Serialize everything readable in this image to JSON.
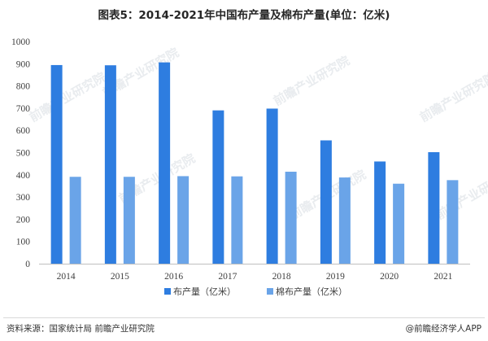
{
  "title": "图表5：2014-2021年中国布产量及棉布产量(单位：亿米)",
  "source": "资料来源：国家统计局 前瞻产业研究院",
  "brand": "@前瞻经济学人APP",
  "watermark": "前瞻产业研究院",
  "colors": {
    "series1": "#2e7de0",
    "series2": "#6aa4e8",
    "axis": "#bfbfbf",
    "text": "#404040"
  },
  "chart_data": {
    "type": "bar",
    "title": "图表5：2014-2021年中国布产量及棉布产量(单位：亿米)",
    "categories": [
      "2014",
      "2015",
      "2016",
      "2017",
      "2018",
      "2019",
      "2020",
      "2021"
    ],
    "series": [
      {
        "name": "布产量（亿米）",
        "values": [
          894,
          893,
          906,
          690,
          698,
          555,
          460,
          502
        ]
      },
      {
        "name": "棉布产量（亿米）",
        "values": [
          391,
          391,
          394,
          393,
          414,
          388,
          360,
          376
        ]
      }
    ],
    "ylim": [
      0,
      1000
    ],
    "yticks": [
      0,
      100,
      200,
      300,
      400,
      500,
      600,
      700,
      800,
      900,
      1000
    ],
    "grid": false,
    "legend": "bottom-center",
    "xlabel": "",
    "ylabel": ""
  }
}
